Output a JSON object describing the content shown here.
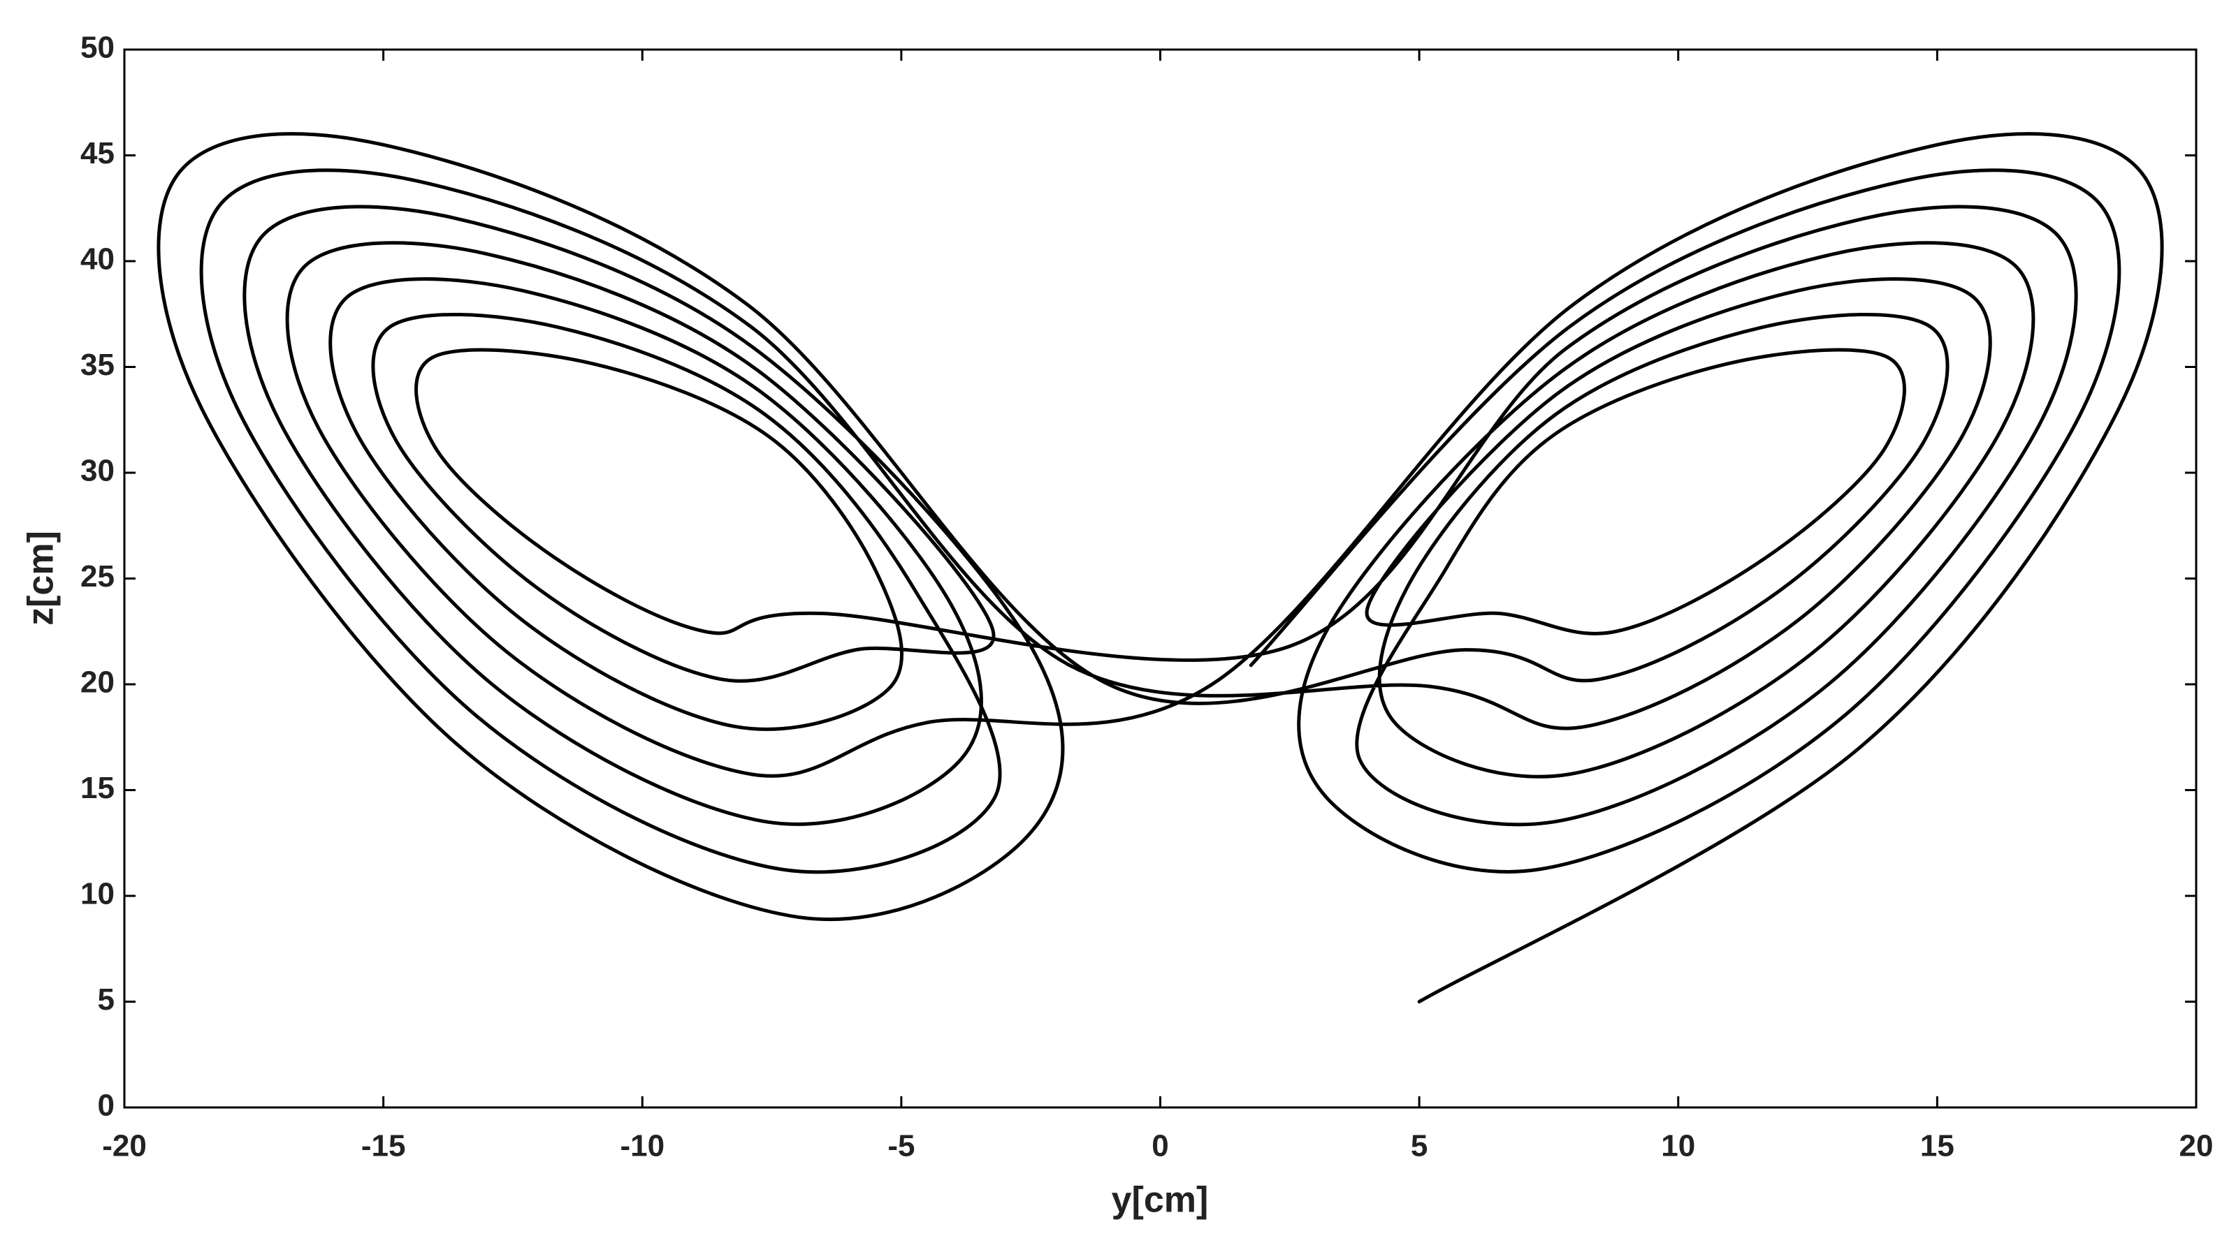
{
  "chart_data": {
    "type": "line",
    "xlabel": "y[cm]",
    "ylabel": "z[cm]",
    "xlim": [
      -20,
      20
    ],
    "ylim": [
      0,
      50
    ],
    "xticks": [
      -20,
      -15,
      -10,
      -5,
      0,
      5,
      10,
      15,
      20
    ],
    "yticks": [
      0,
      5,
      10,
      15,
      20,
      25,
      30,
      35,
      40,
      45,
      50
    ],
    "grid": false,
    "x": [
      5,
      13.5,
      18.5,
      19,
      15,
      8,
      1,
      -4.53,
      -7.9,
      -12.6,
      -16.25,
      -16.53,
      -12.98,
      -7.78,
      -3.25,
      -5.88,
      -8.5,
      -12,
      -14.75,
      -14.88,
      -11.63,
      -7.63,
      -4.75,
      -3.18,
      -7.3,
      -13.2,
      -17.75,
      -18.18,
      -14.33,
      -7.93,
      -1.75,
      5.2,
      8.2,
      12.3,
      15.5,
      15.7,
      12.3,
      7.7,
      4,
      6.55,
      8.8,
      11.7,
      14,
      14.05,
      10.95,
      7.55,
      5.5,
      3.85,
      7.6,
      12.9,
      17,
      17.35,
      13.65,
      7.85,
      2.5,
      -6.55,
      -8.8,
      -11.7,
      -14,
      -14.05,
      -10.95,
      -7.55,
      -5.5,
      -5.2,
      -8.2,
      -12.3,
      -15.5,
      -15.7,
      -12.3,
      -7.7,
      -4,
      -3.85,
      -7.6,
      -12.9,
      -17,
      -17.35,
      -13.65,
      -7.85,
      -2.5,
      -2.5,
      -7,
      -13.5,
      -18.5,
      -19,
      -15,
      -8,
      -1,
      5.88,
      8.5,
      12,
      14.75,
      14.88,
      11.63,
      7.63,
      4.75,
      4.53,
      7.9,
      12.6,
      16.25,
      16.53,
      12.98,
      7.78,
      3.25,
      3.18,
      7.3,
      13.2,
      17.75,
      18.18,
      14.33,
      7.93,
      1.75
    ],
    "series": [
      {
        "color": "#000000",
        "values": [
          5,
          17,
          33,
          44,
          45.5,
          38,
          20,
          18.18,
          15.75,
          21.5,
          32.1,
          39.73,
          40.33,
          34.85,
          22.7,
          21.63,
          20.25,
          24.5,
          31.5,
          36.88,
          36.88,
          32.75,
          24.5,
          14.73,
          11.25,
          18.5,
          32.7,
          42.58,
          43.78,
          36.95,
          20.9,
          19.9,
          18,
          23,
          31.8,
          38.3,
          38.6,
          33.8,
          23.6,
          23.35,
          22.5,
          26,
          31.2,
          35.45,
          35.15,
          31.7,
          25.4,
          16.45,
          13.5,
          20,
          32.4,
          41.15,
          42.05,
          35.9,
          21.8,
          23.35,
          22.5,
          26,
          31.2,
          35.45,
          35.15,
          31.7,
          25.4,
          19.9,
          18,
          23,
          31.8,
          38.3,
          38.6,
          33.8,
          23.6,
          16.45,
          13.5,
          20,
          32.4,
          41.15,
          42.05,
          35.9,
          21.8,
          13,
          9,
          17,
          33,
          44,
          45.5,
          38,
          20,
          21.63,
          20.25,
          24.5,
          31.5,
          36.88,
          36.88,
          32.75,
          24.5,
          18.18,
          15.75,
          21.5,
          32.1,
          39.73,
          40.33,
          34.85,
          22.7,
          14.73,
          11.25,
          18.5,
          32.7,
          42.58,
          43.78,
          36.95,
          20.9
        ]
      }
    ]
  }
}
